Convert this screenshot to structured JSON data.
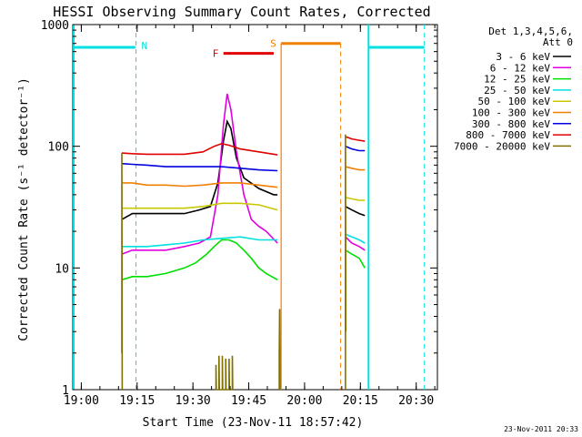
{
  "chart_data": {
    "type": "line",
    "title": "HESSI Observing Summary Count Rates, Corrected",
    "xlabel": "Start Time (23-Nov-11 18:57:42)",
    "ylabel": "Corrected Count Rate (s⁻¹ detector⁻¹)",
    "x_unit": "minutes since 18:57:42",
    "xlim": [
      0,
      98
    ],
    "ylim": [
      1,
      1000
    ],
    "y_scale": "log",
    "grid": false,
    "x_ticks": [
      {
        "at": 2.3,
        "label": "19:00"
      },
      {
        "at": 17.3,
        "label": "19:15"
      },
      {
        "at": 32.3,
        "label": "19:30"
      },
      {
        "at": 47.3,
        "label": "19:45"
      },
      {
        "at": 62.3,
        "label": "20:00"
      },
      {
        "at": 77.3,
        "label": "20:15"
      },
      {
        "at": 92.3,
        "label": "20:30"
      }
    ],
    "y_ticks": [
      {
        "at": 1,
        "label": "1"
      },
      {
        "at": 10,
        "label": "10"
      },
      {
        "at": 100,
        "label": "100"
      },
      {
        "at": 1000,
        "label": "1000"
      }
    ],
    "legend_title": [
      "Det 1,3,4,5,6,",
      "Att 0"
    ],
    "legend_position": "right",
    "series": [
      {
        "name": "3 - 6 keV",
        "color": "#000000",
        "segments": [
          [
            [
              13.2,
              25
            ],
            [
              16,
              28
            ],
            [
              20,
              28
            ],
            [
              25,
              28
            ],
            [
              30,
              28
            ],
            [
              34,
              30
            ],
            [
              37,
              32
            ],
            [
              39,
              50
            ],
            [
              40.5,
              110
            ],
            [
              41.5,
              160
            ],
            [
              42.5,
              140
            ],
            [
              44,
              80
            ],
            [
              46,
              55
            ],
            [
              50,
              45
            ],
            [
              54,
              40
            ],
            [
              55,
              40
            ]
          ],
          [
            [
              73.3,
              32
            ],
            [
              75,
              30
            ],
            [
              77,
              28
            ],
            [
              78.5,
              27
            ]
          ]
        ]
      },
      {
        "name": "6 - 12 keV",
        "color": "#e000e0",
        "segments": [
          [
            [
              13.2,
              13
            ],
            [
              16,
              14
            ],
            [
              20,
              14
            ],
            [
              25,
              14
            ],
            [
              30,
              15
            ],
            [
              34,
              16
            ],
            [
              37,
              18
            ],
            [
              39,
              40
            ],
            [
              40.5,
              150
            ],
            [
              41.5,
              270
            ],
            [
              42.5,
              200
            ],
            [
              44,
              90
            ],
            [
              46,
              40
            ],
            [
              48,
              25
            ],
            [
              50,
              22
            ],
            [
              52,
              20
            ],
            [
              55,
              16
            ]
          ],
          [
            [
              73.3,
              18
            ],
            [
              75,
              16
            ],
            [
              77,
              15
            ],
            [
              78.5,
              14
            ]
          ]
        ]
      },
      {
        "name": "12 - 25 keV",
        "color": "#00e000",
        "segments": [
          [
            [
              13.2,
              8
            ],
            [
              16,
              8.5
            ],
            [
              20,
              8.5
            ],
            [
              25,
              9
            ],
            [
              30,
              10
            ],
            [
              33,
              11
            ],
            [
              36,
              13
            ],
            [
              38,
              15
            ],
            [
              40,
              17
            ],
            [
              42,
              17
            ],
            [
              44,
              16
            ],
            [
              46,
              14
            ],
            [
              48,
              12
            ],
            [
              50,
              10
            ],
            [
              52,
              9
            ],
            [
              55,
              8
            ]
          ],
          [
            [
              73.3,
              14
            ],
            [
              75,
              13
            ],
            [
              77,
              12
            ],
            [
              78.5,
              10
            ]
          ]
        ]
      },
      {
        "name": "25 - 50 keV",
        "color": "#00e0e0",
        "segments": [
          [
            [
              13.2,
              15
            ],
            [
              16,
              15
            ],
            [
              20,
              15
            ],
            [
              25,
              15.5
            ],
            [
              30,
              16
            ],
            [
              35,
              17
            ],
            [
              40,
              17.5
            ],
            [
              45,
              18
            ],
            [
              50,
              17
            ],
            [
              55,
              17
            ]
          ],
          [
            [
              73.3,
              19
            ],
            [
              75,
              18
            ],
            [
              77,
              17
            ],
            [
              78.5,
              16
            ]
          ]
        ]
      },
      {
        "name": "50 - 100 keV",
        "color": "#c8c800",
        "segments": [
          [
            [
              13.2,
              31
            ],
            [
              16,
              31
            ],
            [
              20,
              31
            ],
            [
              25,
              31
            ],
            [
              30,
              31
            ],
            [
              35,
              32
            ],
            [
              40,
              34
            ],
            [
              45,
              34
            ],
            [
              50,
              33
            ],
            [
              55,
              30
            ]
          ],
          [
            [
              73.3,
              38
            ],
            [
              75,
              37
            ],
            [
              77,
              36
            ],
            [
              78.5,
              36
            ]
          ]
        ]
      },
      {
        "name": "100 - 300 keV",
        "color": "#f08000",
        "segments": [
          [
            [
              13.2,
              50
            ],
            [
              16,
              50
            ],
            [
              20,
              48
            ],
            [
              25,
              48
            ],
            [
              30,
              47
            ],
            [
              35,
              48
            ],
            [
              40,
              50
            ],
            [
              45,
              50
            ],
            [
              50,
              48
            ],
            [
              55,
              46
            ]
          ],
          [
            [
              73.3,
              68
            ],
            [
              75,
              66
            ],
            [
              77,
              64
            ],
            [
              78.5,
              64
            ]
          ]
        ]
      },
      {
        "name": "300 - 800 keV",
        "color": "#0000e0",
        "segments": [
          [
            [
              13.2,
              72
            ],
            [
              16,
              71
            ],
            [
              20,
              70
            ],
            [
              25,
              68
            ],
            [
              30,
              68
            ],
            [
              35,
              68
            ],
            [
              40,
              68
            ],
            [
              45,
              66
            ],
            [
              50,
              64
            ],
            [
              55,
              63
            ]
          ],
          [
            [
              73.3,
              100
            ],
            [
              75,
              95
            ],
            [
              77,
              92
            ],
            [
              78.5,
              92
            ]
          ]
        ]
      },
      {
        "name": "800 - 7000 keV",
        "color": "#e00000",
        "segments": [
          [
            [
              13.2,
              88
            ],
            [
              16,
              87
            ],
            [
              20,
              86
            ],
            [
              25,
              86
            ],
            [
              30,
              86
            ],
            [
              35,
              90
            ],
            [
              38,
              100
            ],
            [
              40,
              105
            ],
            [
              42,
              102
            ],
            [
              45,
              95
            ],
            [
              50,
              90
            ],
            [
              55,
              85
            ]
          ],
          [
            [
              73.3,
              120
            ],
            [
              75,
              115
            ],
            [
              77,
              112
            ],
            [
              78.5,
              110
            ]
          ]
        ]
      },
      {
        "name": "7000 - 20000 keV",
        "color": "#807000",
        "segments": [
          [
            [
              13.2,
              2
            ],
            [
              13.2,
              88
            ],
            [
              13.3,
              1
            ]
          ],
          [
            [
              38.5,
              1
            ],
            [
              38.5,
              1.6
            ],
            [
              38.6,
              1
            ],
            [
              39.3,
              1
            ],
            [
              39.3,
              1.9
            ],
            [
              39.4,
              1
            ],
            [
              40.2,
              1
            ],
            [
              40.2,
              1.9
            ],
            [
              40.3,
              1
            ],
            [
              41.1,
              1
            ],
            [
              41.1,
              1.8
            ],
            [
              41.2,
              1
            ],
            [
              42,
              1
            ],
            [
              42,
              1.8
            ],
            [
              42.1,
              1
            ],
            [
              42.9,
              1
            ],
            [
              42.9,
              1.9
            ],
            [
              43,
              1
            ]
          ],
          [
            [
              55.5,
              1
            ],
            [
              55.5,
              2
            ],
            [
              55.6,
              4.6
            ],
            [
              55.7,
              1
            ]
          ],
          [
            [
              73.3,
              1
            ],
            [
              73.3,
              125
            ],
            [
              73.4,
              3
            ]
          ]
        ]
      }
    ],
    "attenuator": {
      "color": "#00e0e0",
      "line_y": 650,
      "solid_x": [
        0,
        79.5
      ],
      "dashed_x": [
        17.0,
        94.5
      ],
      "bars": [
        {
          "from": 0,
          "to": 16.8
        },
        {
          "from": 79.5,
          "to": 94.5
        }
      ],
      "label": "N"
    },
    "flags": [
      {
        "label": "F",
        "color": "#e00000",
        "from": 40.5,
        "to": 54,
        "y": 580
      },
      {
        "label": "S",
        "color": "#f08000",
        "from": 56,
        "to": 72,
        "y": 700,
        "solid_x": 56,
        "dashed_x": 72
      }
    ],
    "footer_date": "23-Nov-2011 20:33"
  }
}
